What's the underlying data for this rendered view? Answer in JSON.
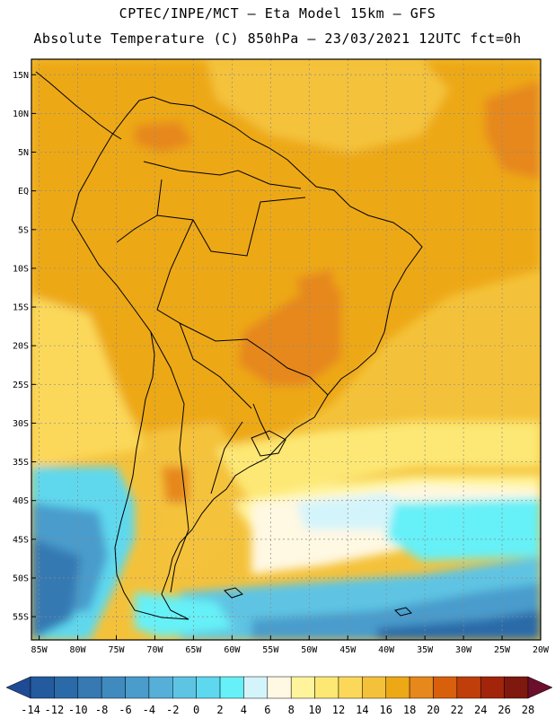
{
  "header": {
    "line1": "CPTEC/INPE/MCT –  Eta Model 15km – GFS",
    "line2": "Absolute Temperature (C) 850hPa – 23/03/2021 12UTC fct=0h"
  },
  "map": {
    "lat_ticks": [
      "15N",
      "10N",
      "5N",
      "EQ",
      "5S",
      "10S",
      "15S",
      "20S",
      "25S",
      "30S",
      "35S",
      "40S",
      "45S",
      "50S",
      "55S"
    ],
    "lon_ticks": [
      "85W",
      "80W",
      "75W",
      "70W",
      "65W",
      "60W",
      "55W",
      "50W",
      "45W",
      "40W",
      "35W",
      "30W",
      "25W",
      "20W"
    ],
    "lat_values": [
      15,
      10,
      5,
      0,
      -5,
      -10,
      -15,
      -20,
      -25,
      -30,
      -35,
      -40,
      -45,
      -50,
      -55
    ],
    "lon_values": [
      -85,
      -80,
      -75,
      -70,
      -65,
      -60,
      -55,
      -50,
      -45,
      -40,
      -35,
      -30,
      -25,
      -20
    ],
    "lat_range": [
      -58,
      17
    ],
    "lon_range": [
      -86,
      -20
    ]
  },
  "colorbar": {
    "labels": [
      "-14",
      "-12",
      "-10",
      "-8",
      "-6",
      "-4",
      "-2",
      "0",
      "2",
      "4",
      "6",
      "8",
      "10",
      "12",
      "14",
      "16",
      "18",
      "20",
      "22",
      "24",
      "26",
      "28"
    ],
    "colors": [
      "#1f4a94",
      "#245a9e",
      "#2b6aa8",
      "#3679b3",
      "#3f8bbf",
      "#4a9ccc",
      "#55afd9",
      "#5ec4e3",
      "#5ed8ee",
      "#66f0f7",
      "#d4f4fb",
      "#fff8e2",
      "#fff49b",
      "#fde874",
      "#fbd85a",
      "#f4c23a",
      "#eda816",
      "#e6881b",
      "#d8600d",
      "#c03e09",
      "#a2240b",
      "#7f180e",
      "#6b0f2a"
    ]
  }
}
